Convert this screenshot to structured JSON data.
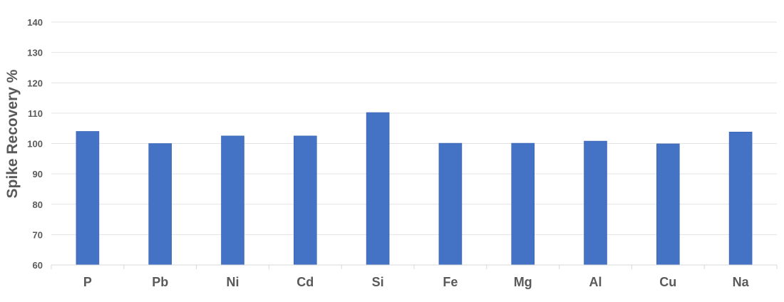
{
  "chart_data": {
    "type": "bar",
    "title": "",
    "xlabel": "",
    "ylabel": "Spike Recovery %",
    "categories": [
      "P",
      "Pb",
      "Ni",
      "Cd",
      "Si",
      "Fe",
      "Mg",
      "Al",
      "Cu",
      "Na"
    ],
    "values": [
      104,
      100,
      102.5,
      102.5,
      110.2,
      100.1,
      100.1,
      100.8,
      99.9,
      103.8
    ],
    "ylim": [
      60,
      140
    ],
    "yticks": [
      60,
      70,
      80,
      90,
      100,
      110,
      120,
      130,
      140
    ],
    "grid": true,
    "legend": "none",
    "bar_color": "#4472C4"
  }
}
